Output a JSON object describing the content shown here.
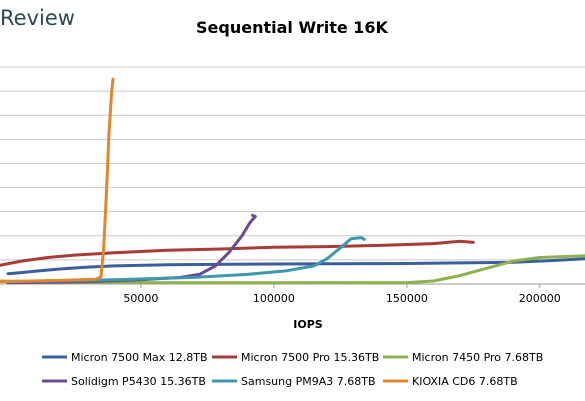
{
  "brand_text": "Review",
  "chart_data": {
    "type": "line",
    "title": "Sequential Write 16K",
    "xlabel": "IOPS",
    "ylabel": "",
    "xlim": [
      -3000,
      217000
    ],
    "ylim": [
      0,
      19
    ],
    "xticks": [
      50000,
      100000,
      150000,
      200000
    ],
    "xtick_labels": [
      "50000",
      "100000",
      "150000",
      "200000"
    ],
    "grid": true,
    "legend_position": "bottom",
    "series": [
      {
        "name": "Micron 7500 Max 12.8TB",
        "color": "#3b5f9c",
        "points": [
          [
            0,
            0.85
          ],
          [
            5000,
            0.95
          ],
          [
            10000,
            1.05
          ],
          [
            20000,
            1.25
          ],
          [
            30000,
            1.4
          ],
          [
            40000,
            1.5
          ],
          [
            60000,
            1.6
          ],
          [
            90000,
            1.65
          ],
          [
            120000,
            1.68
          ],
          [
            150000,
            1.7
          ],
          [
            170000,
            1.75
          ],
          [
            190000,
            1.8
          ],
          [
            205000,
            1.95
          ],
          [
            217000,
            2.1
          ]
        ]
      },
      {
        "name": "Micron 7500 Pro 15.36TB",
        "color": "#a73b39",
        "points": [
          [
            -3000,
            1.55
          ],
          [
            5000,
            1.9
          ],
          [
            15000,
            2.2
          ],
          [
            25000,
            2.4
          ],
          [
            40000,
            2.6
          ],
          [
            60000,
            2.8
          ],
          [
            80000,
            2.9
          ],
          [
            100000,
            3.05
          ],
          [
            120000,
            3.1
          ],
          [
            140000,
            3.2
          ],
          [
            160000,
            3.35
          ],
          [
            170000,
            3.55
          ],
          [
            175000,
            3.45
          ]
        ]
      },
      {
        "name": "Micron 7450 Pro 7.68TB",
        "color": "#8eb04d",
        "points": [
          [
            -3000,
            0.25
          ],
          [
            10000,
            0.18
          ],
          [
            40000,
            0.12
          ],
          [
            70000,
            0.1
          ],
          [
            100000,
            0.1
          ],
          [
            120000,
            0.12
          ],
          [
            140000,
            0.1
          ],
          [
            150000,
            0.12
          ],
          [
            160000,
            0.25
          ],
          [
            170000,
            0.7
          ],
          [
            180000,
            1.3
          ],
          [
            190000,
            1.9
          ],
          [
            200000,
            2.2
          ],
          [
            217000,
            2.35
          ]
        ]
      },
      {
        "name": "Solidigm P5430 15.36TB",
        "color": "#6b4a90",
        "points": [
          [
            0,
            0.1
          ],
          [
            30000,
            0.2
          ],
          [
            50000,
            0.35
          ],
          [
            65000,
            0.55
          ],
          [
            72000,
            0.8
          ],
          [
            78000,
            1.5
          ],
          [
            83000,
            2.6
          ],
          [
            88000,
            4.0
          ],
          [
            91000,
            5.1
          ],
          [
            93000,
            5.6
          ],
          [
            92000,
            5.7
          ]
        ]
      },
      {
        "name": "Samsung PM9A3 7.68TB",
        "color": "#3b98ad",
        "points": [
          [
            0,
            0.2
          ],
          [
            40000,
            0.35
          ],
          [
            70000,
            0.55
          ],
          [
            90000,
            0.8
          ],
          [
            105000,
            1.1
          ],
          [
            115000,
            1.5
          ],
          [
            120000,
            2.1
          ],
          [
            125000,
            3.0
          ],
          [
            129000,
            3.75
          ],
          [
            133000,
            3.85
          ],
          [
            134000,
            3.7
          ]
        ]
      },
      {
        "name": "KIOXIA CD6 7.68TB",
        "color": "#e2862c",
        "points": [
          [
            -3000,
            0.2
          ],
          [
            20000,
            0.3
          ],
          [
            33000,
            0.4
          ],
          [
            35000,
            0.6
          ],
          [
            36000,
            3.0
          ],
          [
            37000,
            7.5
          ],
          [
            38000,
            12.5
          ],
          [
            39000,
            16.0
          ],
          [
            39500,
            17.0
          ]
        ]
      }
    ]
  }
}
